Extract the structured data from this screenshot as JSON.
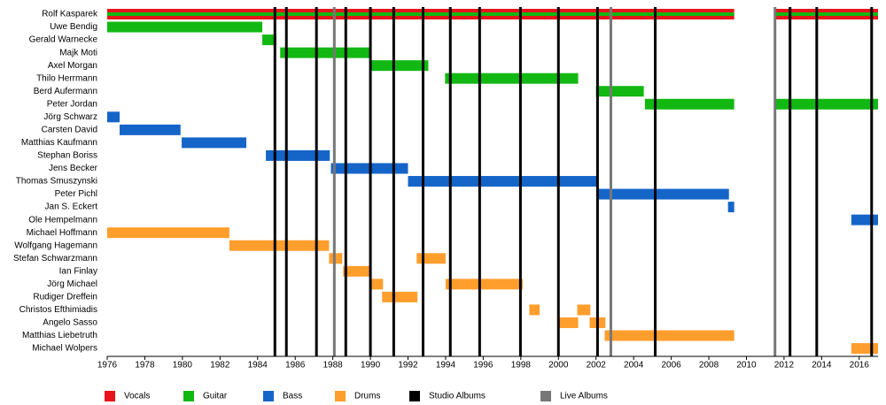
{
  "chart_data": {
    "type": "timeline",
    "xlim": [
      1976,
      2017
    ],
    "xticks": [
      1976,
      1978,
      1980,
      1982,
      1984,
      1986,
      1988,
      1990,
      1992,
      1994,
      1996,
      1998,
      2000,
      2002,
      2004,
      2006,
      2008,
      2010,
      2012,
      2014,
      2016
    ],
    "roles": [
      {
        "name": "Vocals",
        "color": "#e8131b"
      },
      {
        "name": "Guitar",
        "color": "#12b812"
      },
      {
        "name": "Bass",
        "color": "#1565c8"
      },
      {
        "name": "Drums",
        "color": "#ff9e2c"
      }
    ],
    "members": [
      {
        "name": "Rolf Kasparek",
        "segments": [
          {
            "start": 1976,
            "end": 2009.35,
            "role": "Vocals"
          },
          {
            "start": 2011.47,
            "end": 2017,
            "role": "Vocals"
          },
          {
            "start": 1976,
            "end": 2009.35,
            "role": "Guitar"
          },
          {
            "start": 2011.47,
            "end": 2017,
            "role": "Guitar"
          }
        ]
      },
      {
        "name": "Uwe Bendig",
        "segments": [
          {
            "start": 1976,
            "end": 1984.25,
            "role": "Guitar"
          }
        ]
      },
      {
        "name": "Gerald Warnecke",
        "segments": [
          {
            "start": 1984.25,
            "end": 1985.0,
            "role": "Guitar"
          }
        ]
      },
      {
        "name": "Majk Moti",
        "segments": [
          {
            "start": 1985.2,
            "end": 1990.0,
            "role": "Guitar"
          }
        ]
      },
      {
        "name": "Axel Morgan",
        "segments": [
          {
            "start": 1990.0,
            "end": 1993.08,
            "role": "Guitar"
          }
        ]
      },
      {
        "name": "Thilo Herrmann",
        "segments": [
          {
            "start": 1993.97,
            "end": 2001.05,
            "role": "Guitar"
          }
        ]
      },
      {
        "name": "Berd Aufermann",
        "segments": [
          {
            "start": 2002.0,
            "end": 2004.54,
            "role": "Guitar"
          }
        ]
      },
      {
        "name": "Peter Jordan",
        "segments": [
          {
            "start": 2004.6,
            "end": 2009.35,
            "role": "Guitar"
          },
          {
            "start": 2011.47,
            "end": 2017,
            "role": "Guitar"
          }
        ]
      },
      {
        "name": "Jörg Schwarz",
        "segments": [
          {
            "start": 1976,
            "end": 1976.66,
            "role": "Bass"
          }
        ]
      },
      {
        "name": "Carsten David",
        "segments": [
          {
            "start": 1976.66,
            "end": 1979.9,
            "role": "Bass"
          }
        ]
      },
      {
        "name": "Matthias Kaufmann",
        "segments": [
          {
            "start": 1979.96,
            "end": 1983.4,
            "role": "Bass"
          }
        ]
      },
      {
        "name": "Stephan Boriss",
        "segments": [
          {
            "start": 1984.44,
            "end": 1987.84,
            "role": "Bass"
          }
        ]
      },
      {
        "name": "Jens Becker",
        "segments": [
          {
            "start": 1987.9,
            "end": 1992.0,
            "role": "Bass"
          }
        ]
      },
      {
        "name": "Thomas Smuszynski",
        "segments": [
          {
            "start": 1992.0,
            "end": 2002.04,
            "role": "Bass"
          }
        ]
      },
      {
        "name": "Peter Pichl",
        "segments": [
          {
            "start": 2002.04,
            "end": 2009.07,
            "role": "Bass"
          }
        ]
      },
      {
        "name": "Jan S. Eckert",
        "segments": [
          {
            "start": 2009.02,
            "end": 2009.35,
            "role": "Bass"
          }
        ]
      },
      {
        "name": "Ole Hempelmann",
        "segments": [
          {
            "start": 2015.58,
            "end": 2017,
            "role": "Bass"
          }
        ]
      },
      {
        "name": "Michael Hoffmann",
        "segments": [
          {
            "start": 1976,
            "end": 1982.5,
            "role": "Drums"
          }
        ]
      },
      {
        "name": "Wolfgang Hagemann",
        "segments": [
          {
            "start": 1982.5,
            "end": 1987.8,
            "role": "Drums"
          }
        ]
      },
      {
        "name": "Stefan Schwarzmann",
        "segments": [
          {
            "start": 1987.8,
            "end": 1988.5,
            "role": "Drums"
          },
          {
            "start": 1992.46,
            "end": 1994.0,
            "role": "Drums"
          }
        ]
      },
      {
        "name": "Ian Finlay",
        "segments": [
          {
            "start": 1988.55,
            "end": 1990.0,
            "role": "Drums"
          }
        ]
      },
      {
        "name": "Jörg Michael",
        "segments": [
          {
            "start": 1989.96,
            "end": 1990.67,
            "role": "Drums"
          },
          {
            "start": 1994.0,
            "end": 1998.1,
            "role": "Drums"
          }
        ]
      },
      {
        "name": "Rudiger Dreffein",
        "segments": [
          {
            "start": 1990.62,
            "end": 1992.5,
            "role": "Drums"
          }
        ]
      },
      {
        "name": "Christos Efthimiadis",
        "segments": [
          {
            "start": 1998.45,
            "end": 1999.0,
            "role": "Drums"
          },
          {
            "start": 2001.0,
            "end": 2001.7,
            "role": "Drums"
          }
        ]
      },
      {
        "name": "Angelo Sasso",
        "segments": [
          {
            "start": 1999.96,
            "end": 2001.05,
            "role": "Drums"
          },
          {
            "start": 2001.66,
            "end": 2002.5,
            "role": "Drums"
          }
        ]
      },
      {
        "name": "Matthias Liebetruth",
        "segments": [
          {
            "start": 2002.46,
            "end": 2009.35,
            "role": "Drums"
          }
        ]
      },
      {
        "name": "Michael Wolpers",
        "segments": [
          {
            "start": 2015.58,
            "end": 2017,
            "role": "Drums"
          }
        ]
      }
    ],
    "events": [
      {
        "name": "Studio Albums",
        "color": "#000000",
        "values": [
          1984.92,
          1985.53,
          1987.13,
          1988.69,
          1990.0,
          1991.24,
          1992.8,
          1994.25,
          1995.81,
          1997.98,
          2000.0,
          2002.08,
          2005.15,
          2012.32,
          2013.74,
          2016.66
        ]
      },
      {
        "name": "Live Albums",
        "color": "#777777",
        "values": [
          1988.08,
          2002.79,
          2011.52
        ]
      }
    ]
  }
}
